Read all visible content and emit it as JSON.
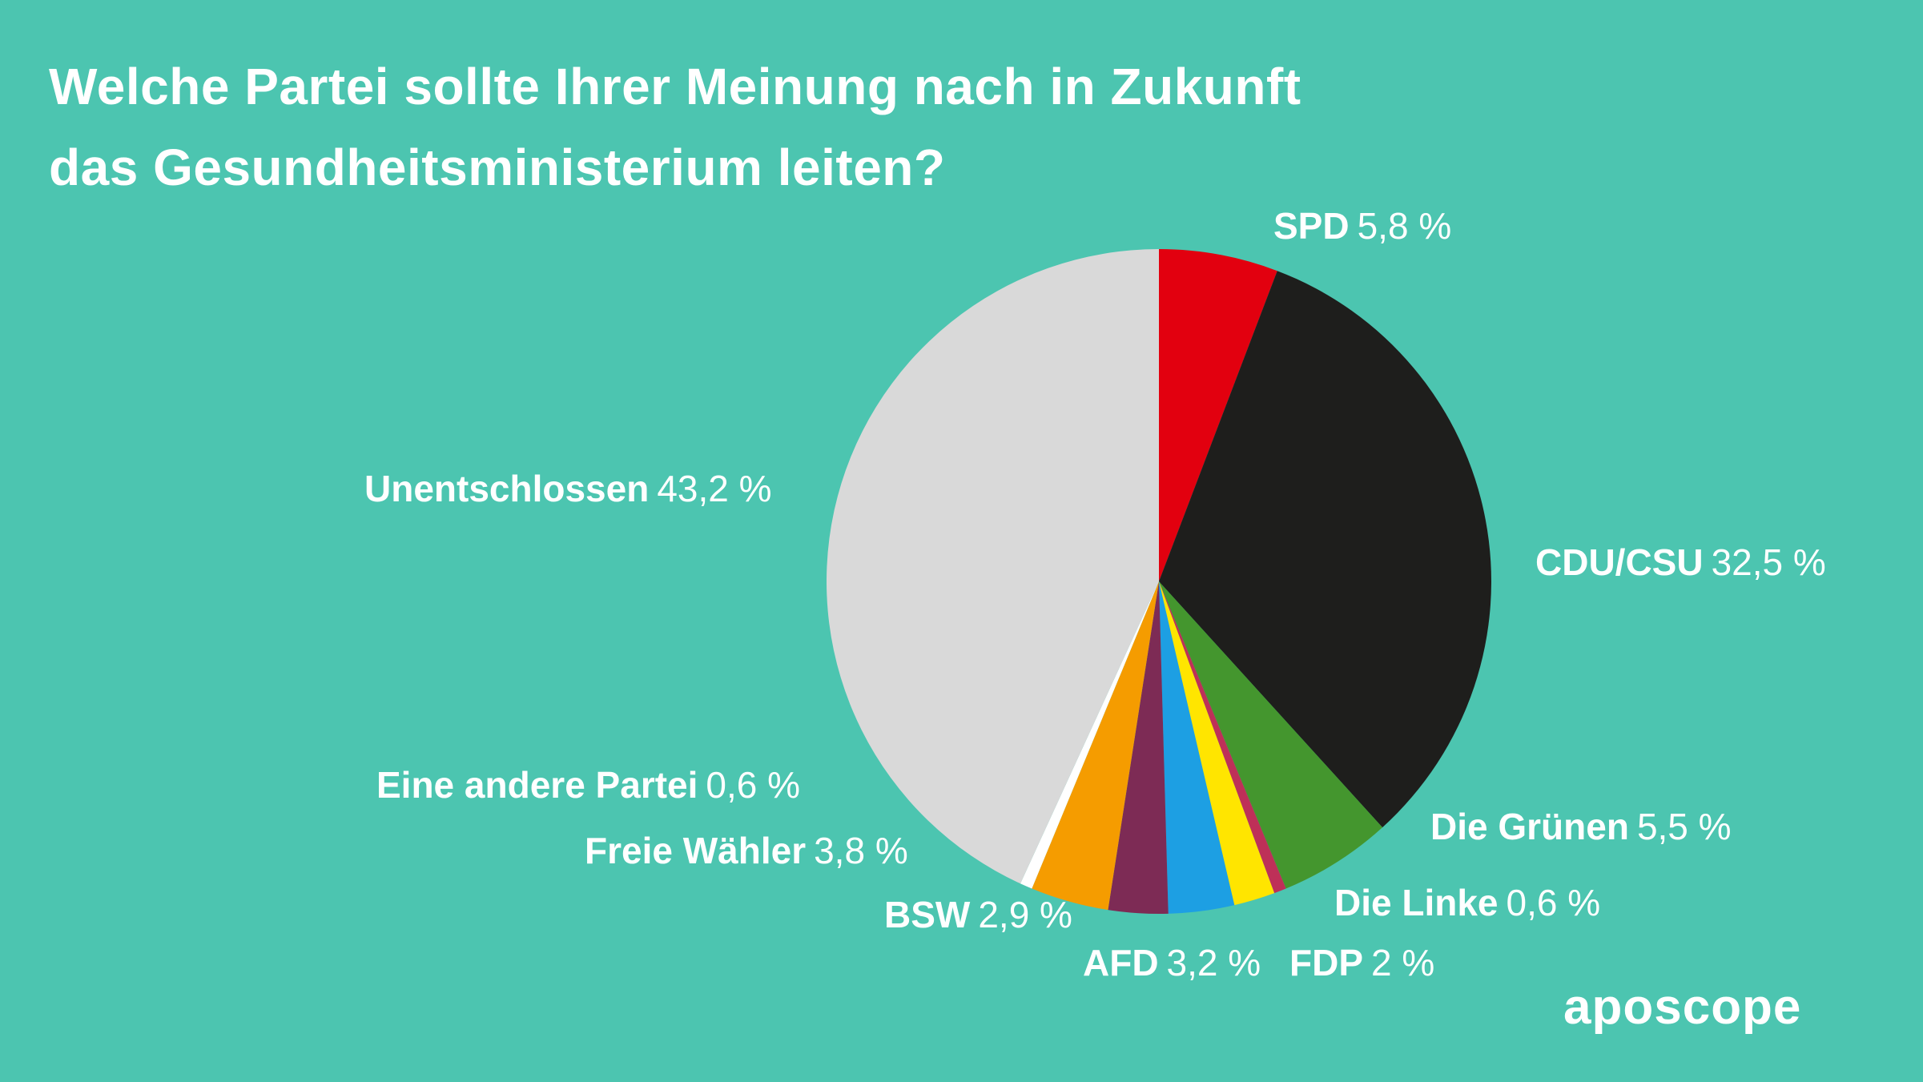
{
  "title": {
    "line1": "Welche Partei sollte Ihrer Meinung nach in Zukunft",
    "line2": "das Gesundheitsministerium leiten?"
  },
  "logo_text": "aposcope",
  "background_color": "#4CC5B0",
  "chart_data": {
    "type": "pie",
    "title": "Welche Partei sollte Ihrer Meinung nach in Zukunft das Gesundheitsministerium leiten?",
    "start_angle_deg": -90,
    "direction": "clockwise",
    "legend_position": "around-pie",
    "slices": [
      {
        "id": "spd",
        "label": "SPD",
        "value": 5.8,
        "display_value": "5,8 %",
        "color": "#E2000F"
      },
      {
        "id": "cdu-csu",
        "label": "CDU/CSU",
        "value": 32.5,
        "display_value": "32,5 %",
        "color": "#1E1E1C"
      },
      {
        "id": "die-gruenen",
        "label": "Die Grünen",
        "value": 5.5,
        "display_value": "5,5 %",
        "color": "#44962E"
      },
      {
        "id": "die-linke",
        "label": "Die Linke",
        "value": 0.6,
        "display_value": "0,6 %",
        "color": "#BE3058"
      },
      {
        "id": "fdp",
        "label": "FDP",
        "value": 2,
        "display_value": "2 %",
        "color": "#FFE500"
      },
      {
        "id": "afd",
        "label": "AFD",
        "value": 3.2,
        "display_value": "3,2 %",
        "color": "#1D9FE3"
      },
      {
        "id": "bsw",
        "label": "BSW",
        "value": 2.9,
        "display_value": "2,9 %",
        "color": "#7D2B55"
      },
      {
        "id": "freie-waehler",
        "label": "Freie Wähler",
        "value": 3.8,
        "display_value": "3,8 %",
        "color": "#F59C00"
      },
      {
        "id": "andere",
        "label": "Eine andere Partei",
        "value": 0.6,
        "display_value": "0,6 %",
        "color": "#FFFFFF"
      },
      {
        "id": "unentschlossen",
        "label": "Unentschlossen",
        "value": 43.2,
        "display_value": "43,2 %",
        "color": "#D9D9D9"
      }
    ]
  }
}
